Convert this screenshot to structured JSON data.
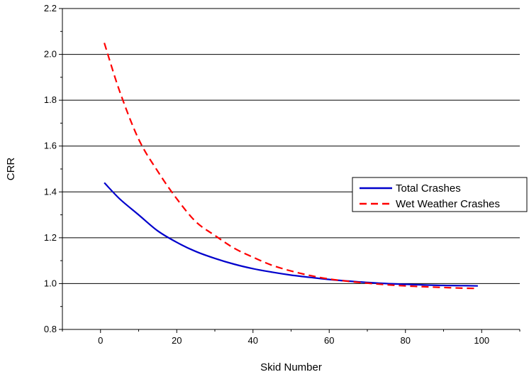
{
  "chart_data": {
    "type": "line",
    "xlabel": "Skid Number",
    "ylabel": "CRR",
    "xlim": [
      -10,
      110
    ],
    "ylim": [
      0.8,
      2.2
    ],
    "xticks": [
      0,
      20,
      40,
      60,
      80,
      100
    ],
    "xtick_labels": [
      "0",
      "20",
      "40",
      "60",
      "80",
      "100"
    ],
    "yticks": [
      0.8,
      1.0,
      1.2,
      1.4,
      1.6,
      1.8,
      2.0,
      2.2
    ],
    "ytick_labels": [
      "0.8",
      "1.0",
      "1.2",
      "1.4",
      "1.6",
      "1.8",
      "2.0",
      "2.2"
    ],
    "grid": "horizontal",
    "legend_position": "right",
    "series": [
      {
        "name": "Total Crashes",
        "color": "#0000cc",
        "style": "solid",
        "x": [
          1,
          5,
          10,
          15,
          20,
          25,
          30,
          35,
          40,
          45,
          50,
          55,
          60,
          65,
          70,
          75,
          80,
          85,
          90,
          95,
          99
        ],
        "y": [
          1.44,
          1.37,
          1.3,
          1.23,
          1.18,
          1.14,
          1.11,
          1.085,
          1.065,
          1.05,
          1.037,
          1.027,
          1.018,
          1.011,
          1.005,
          1.0,
          0.997,
          0.994,
          0.992,
          0.991,
          0.99
        ]
      },
      {
        "name": "Wet Weather Crashes",
        "color": "#ff0000",
        "style": "dashed",
        "x": [
          1,
          5,
          10,
          15,
          20,
          25,
          30,
          35,
          40,
          45,
          50,
          55,
          60,
          65,
          70,
          75,
          80,
          85,
          90,
          95,
          99
        ],
        "y": [
          2.05,
          1.84,
          1.63,
          1.49,
          1.37,
          1.27,
          1.21,
          1.155,
          1.115,
          1.08,
          1.055,
          1.035,
          1.02,
          1.01,
          1.002,
          0.995,
          0.99,
          0.986,
          0.983,
          0.98,
          0.979
        ]
      }
    ]
  }
}
